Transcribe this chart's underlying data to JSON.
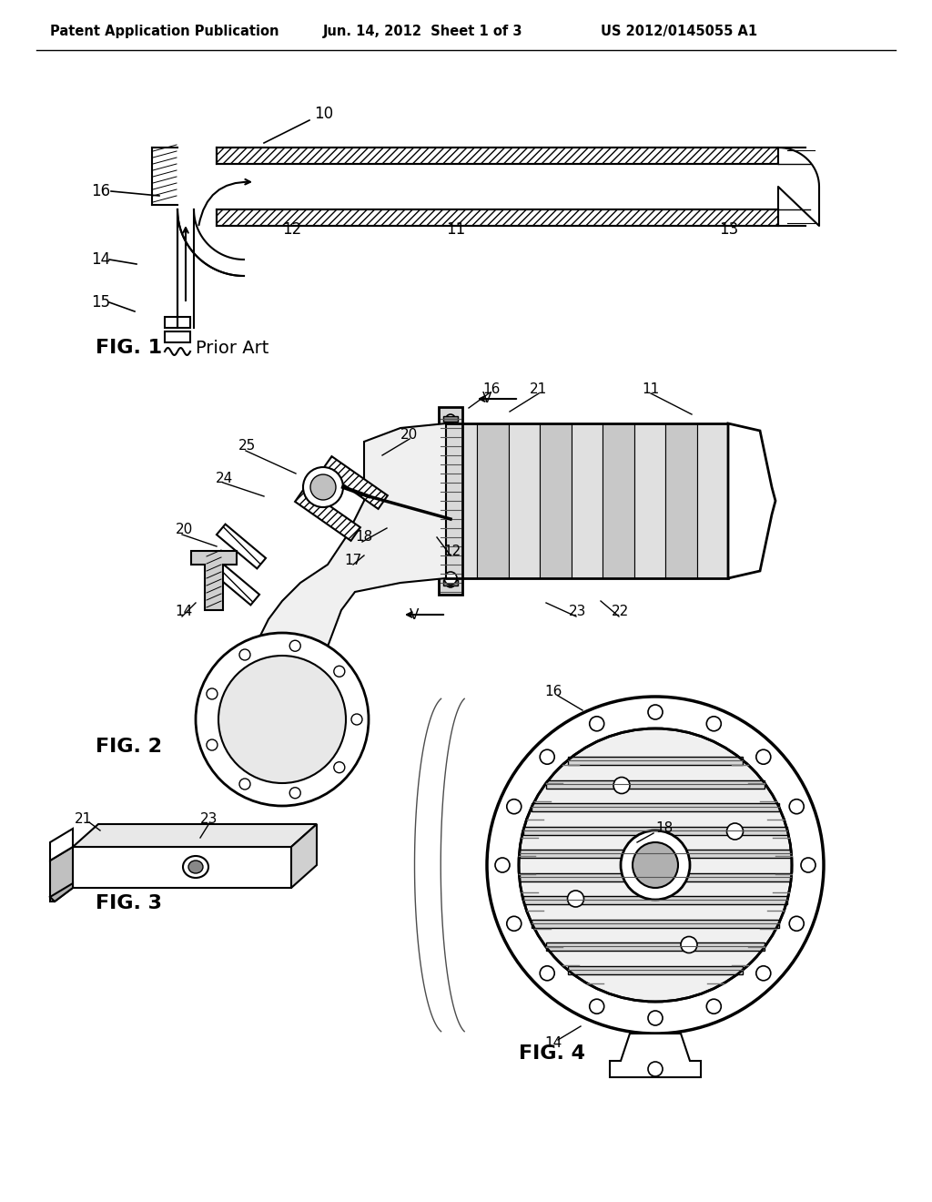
{
  "background_color": "#ffffff",
  "header_left": "Patent Application Publication",
  "header_center": "Jun. 14, 2012  Sheet 1 of 3",
  "header_right": "US 2012/0145055 A1",
  "fig1_label": "FIG. 1",
  "fig1_sublabel": "Prior Art",
  "fig2_label": "FIG. 2",
  "fig3_label": "FIG. 3",
  "fig4_label": "FIG. 4",
  "text_color": "#000000",
  "line_color": "#000000"
}
